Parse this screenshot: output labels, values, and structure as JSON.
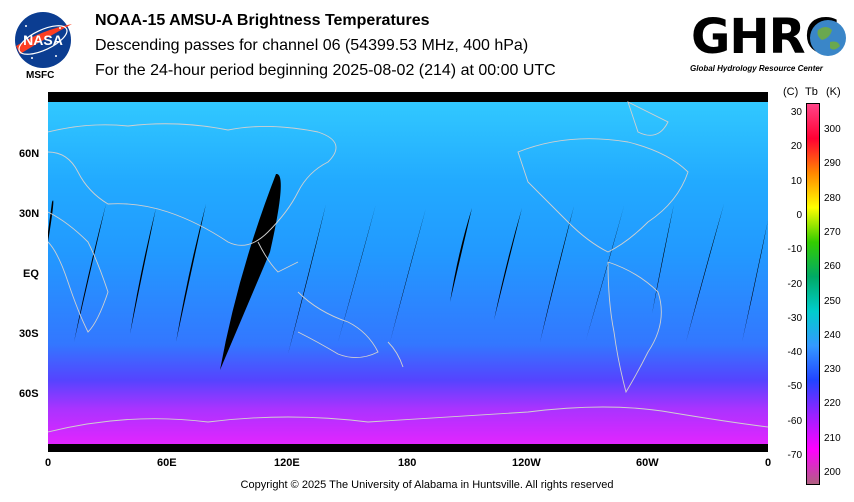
{
  "header": {
    "title": "NOAA-15 AMSU-A Brightness Temperatures",
    "subtitle": "Descending passes for channel 06 (54399.53 MHz, 400 hPa)",
    "period": "For the 24-hour period beginning 2025-08-02 (214) at 00:00 UTC"
  },
  "logos": {
    "nasa": "NASA",
    "msfc": "MSFC",
    "ghrc": "GHRC",
    "ghrc_full": "Global Hydrology Resource Center"
  },
  "map": {
    "lat_labels": [
      "60N",
      "30N",
      "EQ",
      "30S",
      "60S"
    ],
    "lon_labels": [
      "0",
      "60E",
      "120E",
      "180",
      "120W",
      "60W",
      "0"
    ]
  },
  "colorbar": {
    "header_c": "(C)",
    "header_tb": "Tb",
    "header_k": "(K)",
    "celsius_ticks": [
      "30",
      "20",
      "10",
      "0",
      "-10",
      "-20",
      "-30",
      "-40",
      "-50",
      "-60",
      "-70"
    ],
    "kelvin_ticks": [
      "300",
      "290",
      "280",
      "270",
      "260",
      "250",
      "240",
      "230",
      "220",
      "210",
      "200"
    ],
    "colors": [
      "#ff4488",
      "#ff0033",
      "#ff8800",
      "#ffff00",
      "#33cc00",
      "#00aa66",
      "#00cccc",
      "#3399ff",
      "#2244ff",
      "#9922ff",
      "#ff00ff",
      "#b06080"
    ]
  },
  "footer": {
    "copyright": "Copyright © 2025 The University of Alabama in Huntsville.  All rights reserved"
  }
}
